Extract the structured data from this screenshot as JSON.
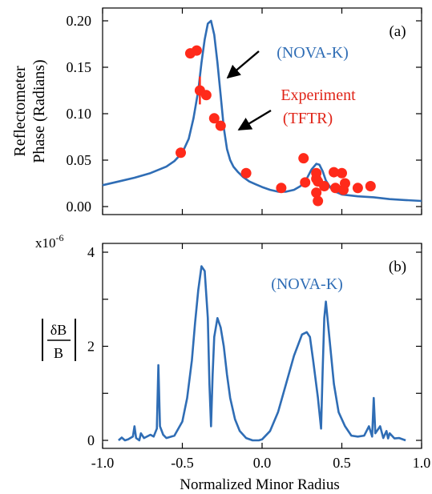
{
  "colors": {
    "curve": "#2f6db5",
    "experiment": "#ff2a1a",
    "axis": "#000000",
    "annotation": "#e02418"
  },
  "icons": {
    "pointer": "arrow-icon"
  },
  "shared": {
    "xlabel": "Normalized Minor Radius",
    "xticks": [
      "-1.0",
      "-0.5",
      "0.0",
      "0.5",
      "1.0"
    ],
    "xlim": [
      -1.0,
      1.0
    ]
  },
  "chart_data": [
    {
      "panel_label": "(a)",
      "type": "line",
      "ylabel_line1": "Reflectometer",
      "ylabel_line2": "Phase (Radians)",
      "ylim": [
        0.0,
        0.21
      ],
      "yticks": [
        "0.20",
        "0.15",
        "0.10",
        "0.05",
        "0.00"
      ],
      "annotations": {
        "model_label": "(NOVA-K)",
        "experiment_line1": "Experiment",
        "experiment_line2": "(TFTR)"
      },
      "series": [
        {
          "name": "NOVA-K",
          "x": [
            -1.0,
            -0.9,
            -0.8,
            -0.7,
            -0.6,
            -0.55,
            -0.5,
            -0.46,
            -0.43,
            -0.4,
            -0.38,
            -0.36,
            -0.34,
            -0.32,
            -0.3,
            -0.28,
            -0.26,
            -0.24,
            -0.22,
            -0.2,
            -0.18,
            -0.15,
            -0.12,
            -0.08,
            -0.04,
            0.0,
            0.05,
            0.1,
            0.15,
            0.2,
            0.24,
            0.28,
            0.31,
            0.34,
            0.36,
            0.38,
            0.4,
            0.43,
            0.46,
            0.5,
            0.6,
            0.7,
            0.8,
            0.9,
            1.0
          ],
          "y": [
            0.023,
            0.027,
            0.031,
            0.036,
            0.043,
            0.049,
            0.058,
            0.073,
            0.095,
            0.125,
            0.155,
            0.18,
            0.197,
            0.2,
            0.185,
            0.155,
            0.12,
            0.085,
            0.062,
            0.05,
            0.043,
            0.037,
            0.032,
            0.027,
            0.024,
            0.021,
            0.018,
            0.016,
            0.016,
            0.018,
            0.022,
            0.03,
            0.04,
            0.046,
            0.045,
            0.038,
            0.028,
            0.02,
            0.016,
            0.013,
            0.011,
            0.01,
            0.008,
            0.007,
            0.006
          ]
        },
        {
          "name": "Experiment (TFTR)",
          "points": [
            [
              -0.51,
              0.058
            ],
            [
              -0.45,
              0.165
            ],
            [
              -0.41,
              0.168
            ],
            [
              -0.39,
              0.125
            ],
            [
              -0.35,
              0.12
            ],
            [
              -0.3,
              0.095
            ],
            [
              -0.26,
              0.087
            ],
            [
              -0.1,
              0.036
            ],
            [
              0.12,
              0.02
            ],
            [
              0.26,
              0.052
            ],
            [
              0.27,
              0.026
            ],
            [
              0.34,
              0.036
            ],
            [
              0.34,
              0.03
            ],
            [
              0.35,
              0.027
            ],
            [
              0.34,
              0.015
            ],
            [
              0.35,
              0.006
            ],
            [
              0.39,
              0.022
            ],
            [
              0.45,
              0.037
            ],
            [
              0.46,
              0.02
            ],
            [
              0.5,
              0.036
            ],
            [
              0.51,
              0.018
            ],
            [
              0.52,
              0.025
            ],
            [
              0.6,
              0.02
            ],
            [
              0.68,
              0.022
            ]
          ],
          "error_bars": [
            {
              "x": -0.39,
              "ylow": 0.11,
              "yhigh": 0.14
            }
          ]
        }
      ]
    },
    {
      "panel_label": "(b)",
      "type": "line",
      "ylabel": "δB / B",
      "yscale_label": "x10",
      "yscale_exponent": "-6",
      "ylim": [
        0,
        4
      ],
      "yticks": [
        "4",
        "2",
        "0"
      ],
      "annotations": {
        "model_label": "(NOVA-K)"
      },
      "series": [
        {
          "name": "NOVA-K",
          "x": [
            -0.9,
            -0.88,
            -0.86,
            -0.84,
            -0.81,
            -0.8,
            -0.79,
            -0.77,
            -0.76,
            -0.74,
            -0.7,
            -0.68,
            -0.66,
            -0.65,
            -0.64,
            -0.62,
            -0.6,
            -0.55,
            -0.5,
            -0.47,
            -0.44,
            -0.42,
            -0.4,
            -0.38,
            -0.36,
            -0.34,
            -0.33,
            -0.32,
            -0.31,
            -0.3,
            -0.28,
            -0.26,
            -0.24,
            -0.22,
            -0.2,
            -0.17,
            -0.14,
            -0.1,
            -0.06,
            -0.02,
            0.0,
            0.05,
            0.1,
            0.15,
            0.2,
            0.25,
            0.28,
            0.3,
            0.32,
            0.35,
            0.37,
            0.38,
            0.39,
            0.4,
            0.41,
            0.43,
            0.45,
            0.48,
            0.52,
            0.56,
            0.6,
            0.64,
            0.67,
            0.69,
            0.7,
            0.71,
            0.74,
            0.76,
            0.78,
            0.79,
            0.8,
            0.83,
            0.86,
            0.9
          ],
          "y": [
            0.0,
            0.06,
            0.0,
            0.02,
            0.08,
            0.3,
            0.05,
            0.0,
            0.15,
            0.05,
            0.12,
            0.08,
            0.25,
            1.6,
            0.3,
            0.12,
            0.05,
            0.1,
            0.4,
            0.9,
            1.7,
            2.5,
            3.2,
            3.7,
            3.6,
            2.6,
            1.2,
            0.3,
            1.4,
            2.2,
            2.6,
            2.4,
            2.0,
            1.4,
            0.9,
            0.45,
            0.2,
            0.05,
            0.0,
            0.0,
            0.02,
            0.2,
            0.6,
            1.2,
            1.8,
            2.25,
            2.3,
            2.2,
            1.7,
            0.9,
            0.25,
            1.5,
            2.6,
            2.95,
            2.6,
            1.9,
            1.2,
            0.6,
            0.3,
            0.1,
            0.08,
            0.1,
            0.3,
            0.08,
            0.9,
            0.15,
            0.3,
            0.05,
            0.2,
            0.04,
            0.15,
            0.04,
            0.05,
            0.0
          ]
        }
      ]
    }
  ]
}
